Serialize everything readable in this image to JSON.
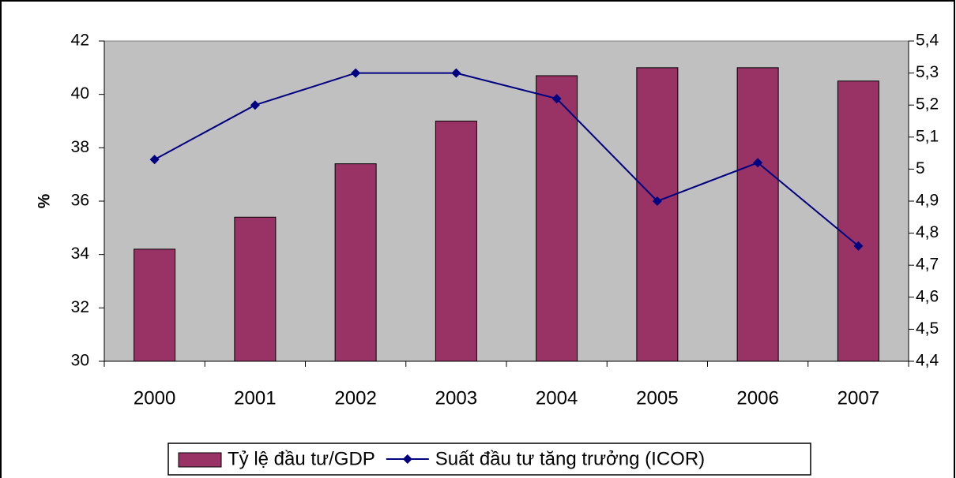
{
  "chart_data": {
    "type": "bar_line",
    "ylabel": "%",
    "categories": [
      "2000",
      "2001",
      "2002",
      "2003",
      "2004",
      "2005",
      "2006",
      "2007"
    ],
    "series": [
      {
        "name": "Tỷ lệ đầu tư/GDP",
        "type": "bar",
        "color": "#993366",
        "values": [
          34.2,
          35.4,
          37.4,
          39.0,
          40.7,
          41,
          41,
          40.5
        ]
      },
      {
        "name": "Suất đầu tư tăng trưởng (ICOR)",
        "type": "line",
        "axis": "y2",
        "color": "#000080",
        "values": [
          5.03,
          5.2,
          5.3,
          5.3,
          5.22,
          4.9,
          5.02,
          4.76
        ]
      }
    ],
    "ylim": [
      30,
      42
    ],
    "yticks": [
      30,
      32,
      34,
      36,
      38,
      40,
      42
    ],
    "y2lim": [
      4.4,
      5.4
    ],
    "y2ticks": [
      {
        "value": 4.4,
        "label": "4,4"
      },
      {
        "value": 4.5,
        "label": "4,5"
      },
      {
        "value": 4.6,
        "label": "4,6"
      },
      {
        "value": 4.7,
        "label": "4,7"
      },
      {
        "value": 4.8,
        "label": "4,8"
      },
      {
        "value": 4.9,
        "label": "4,9"
      },
      5,
      {
        "value": 5.1,
        "label": "5,1"
      },
      {
        "value": 5.2,
        "label": "5,2"
      },
      {
        "value": 5.3,
        "label": "5,3"
      },
      {
        "value": 5.4,
        "label": "5,4"
      }
    ],
    "grid": false,
    "legend": "bottom",
    "plot_background": "#c0c0c0"
  }
}
